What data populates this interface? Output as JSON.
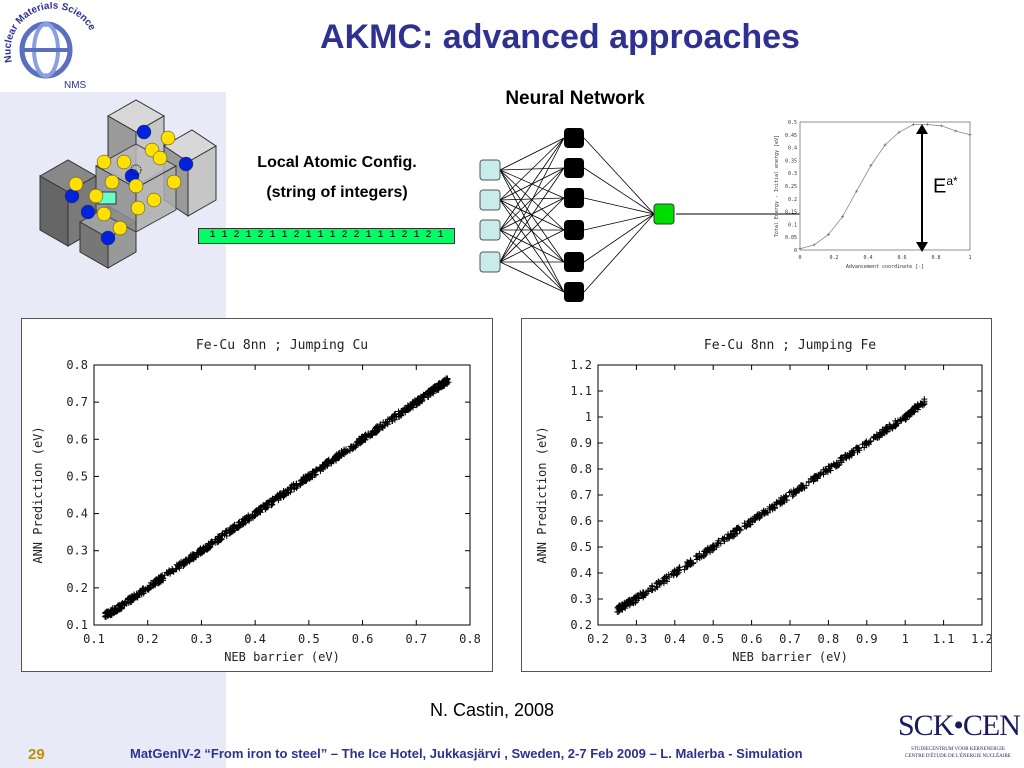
{
  "slide": {
    "title": "AKMC: advanced approaches",
    "neural_network_label": "Neural Network",
    "config_label_line1": "Local Atomic Config.",
    "config_label_line2": "(string of integers)",
    "config_string": "1 1 2 1 2 1 1 2 1 1 1 2 2 1 1 1 2 1 2 1",
    "ea_label": "E",
    "ea_superscript": "a*",
    "citation": "N. Castin, 2008",
    "page_number": "29",
    "footer": "MatGenIV-2 “From iron to steel” – The Ice Hotel, Jukkasjärvi , Sweden, 2-7 Feb 2009 – L. Malerba - Simulation",
    "logo_nms_text": "Nuclear Materials Science",
    "logo_nms_abbr": "NMS",
    "logo_sck_text": "SCK•CEN",
    "logo_sck_sub1": "STUDIECENTRUM VOOR KERNENERGIE",
    "logo_sck_sub2": "CENTRE D'ÉTUDE DE L'ÉNERGIE NUCLÉAIRE"
  },
  "colors": {
    "title": "#2e3192",
    "footer": "#2e3192",
    "page_number": "#c09000",
    "side_band": "#e8ebf7",
    "input_node": "#c8ecec",
    "hidden_node": "#000000",
    "output_node": "#00dd00",
    "config_string_bg": "#00ff66",
    "iron_atom": "#ffe000",
    "copper_atom": "#0022dd"
  },
  "chart_data": [
    {
      "type": "line",
      "title": "",
      "xlabel": "Advancement coordinate [-]",
      "ylabel": "Total Energy - Initial energy [eV]",
      "xlim": [
        0,
        1
      ],
      "ylim": [
        0,
        0.5
      ],
      "xticks": [
        "0",
        "0.2",
        "0.4",
        "0.6",
        "0.8",
        "1"
      ],
      "yticks": [
        "0",
        "0.05",
        "0.1",
        "0.15",
        "0.2",
        "0.25",
        "0.3",
        "0.35",
        "0.4",
        "0.45",
        "0.5"
      ],
      "x": [
        0,
        0.083,
        0.167,
        0.25,
        0.333,
        0.417,
        0.5,
        0.583,
        0.667,
        0.75,
        0.833,
        0.917,
        1
      ],
      "y": [
        0.005,
        0.02,
        0.06,
        0.13,
        0.23,
        0.33,
        0.41,
        0.46,
        0.49,
        0.49,
        0.485,
        0.465,
        0.45
      ]
    },
    {
      "type": "scatter",
      "title": "Fe-Cu 8nn ; Jumping Cu",
      "xlabel": "NEB barrier (eV)",
      "ylabel": "ANN Prediction (eV)",
      "xlim": [
        0.1,
        0.8
      ],
      "ylim": [
        0.1,
        0.8
      ],
      "xticks": [
        "0.1",
        "0.2",
        "0.3",
        "0.4",
        "0.5",
        "0.6",
        "0.7",
        "0.8"
      ],
      "yticks": [
        "0.1",
        "0.2",
        "0.3",
        "0.4",
        "0.5",
        "0.6",
        "0.7",
        "0.8"
      ],
      "x_range": [
        0.12,
        0.76
      ],
      "y_range": [
        0.12,
        0.76
      ],
      "series": [
        {
          "values_x": [
            0.12,
            0.15,
            0.2,
            0.25,
            0.3,
            0.35,
            0.4,
            0.45,
            0.5,
            0.55,
            0.6,
            0.65,
            0.7,
            0.74,
            0.76
          ],
          "values": [
            0.125,
            0.15,
            0.2,
            0.25,
            0.3,
            0.35,
            0.4,
            0.45,
            0.5,
            0.55,
            0.6,
            0.65,
            0.7,
            0.74,
            0.76
          ]
        }
      ]
    },
    {
      "type": "scatter",
      "title": "Fe-Cu 8nn ; Jumping Fe",
      "xlabel": "NEB barrier (eV)",
      "ylabel": "ANN Prediction (eV)",
      "xlim": [
        0.2,
        1.2
      ],
      "ylim": [
        0.2,
        1.2
      ],
      "xticks": [
        "0.2",
        "0.3",
        "0.4",
        "0.5",
        "0.6",
        "0.7",
        "0.8",
        "0.9",
        "1",
        "1.1",
        "1.2"
      ],
      "yticks": [
        "0.2",
        "0.3",
        "0.4",
        "0.5",
        "0.6",
        "0.7",
        "0.8",
        "0.9",
        "1",
        "1.1",
        "1.2"
      ],
      "series": [
        {
          "values_x": [
            0.25,
            0.3,
            0.4,
            0.5,
            0.6,
            0.7,
            0.8,
            0.9,
            1.0,
            1.05
          ],
          "values": [
            0.26,
            0.3,
            0.4,
            0.5,
            0.6,
            0.7,
            0.8,
            0.9,
            1.0,
            1.06
          ]
        }
      ]
    }
  ]
}
